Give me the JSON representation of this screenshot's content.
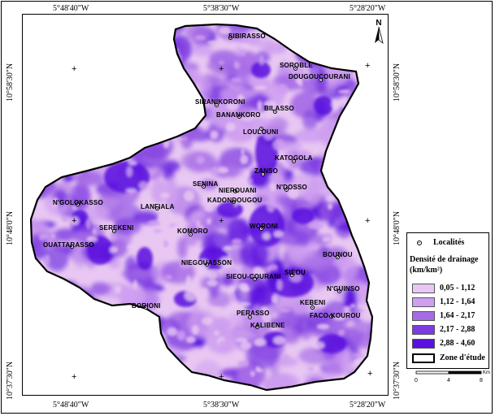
{
  "map": {
    "coordinates": {
      "top": [
        "5°48'40\"W",
        "5°38'30\"W",
        "5°28'20\"W"
      ],
      "bottom": [
        "5°48'40\"W",
        "5°38'30\"W",
        "5°28'20\"W"
      ],
      "left": [
        "10°58'30\"N",
        "10°48'0\"N",
        "10°37'30\"N"
      ],
      "right": [
        "10°58'30\"N",
        "10°48'0\"N",
        "10°37'30\"N"
      ]
    },
    "north_label": "N",
    "places": [
      "SIBIRASSO",
      "SOROBLE",
      "DOUGOUCOURANI",
      "SIRANIKORONI",
      "BILASSO",
      "BANANKORO",
      "LOULOUNI",
      "KATOGOLA",
      "ZANSO",
      "SENINA",
      "NIEROUANI",
      "N'DOSSO",
      "KADONDOUGOU",
      "N'GOLOKASSO",
      "LANFIALA",
      "SEREKENI",
      "WORONI",
      "KOMORO",
      "OUATTARASSO",
      "NIEGOUASSON",
      "SIEOU-COURANI",
      "SIEOU",
      "BOUNOU",
      "N'GUINSO",
      "KEBENI",
      "BORIONI",
      "PERASSO",
      "FACO-KOUROU",
      "KALIBENE"
    ]
  },
  "legend": {
    "localites_label": "Localités",
    "density_title_line1": "Densité de drainage",
    "density_title_line2": "(km/km²)",
    "classes": [
      {
        "label": "0,05 - 1,12",
        "color": "#e8c8f2"
      },
      {
        "label": "1,12 - 1,64",
        "color": "#cf9ff0"
      },
      {
        "label": "1,64 - 2,17",
        "color": "#a66ce6"
      },
      {
        "label": "2,17 - 2,88",
        "color": "#7d3be2"
      },
      {
        "label": "2,88 - 4,60",
        "color": "#5a10de"
      }
    ],
    "zone_label": "Zone d'étude"
  },
  "scale": {
    "ticks": [
      "0",
      "4",
      "8"
    ],
    "unit": "Km"
  }
}
